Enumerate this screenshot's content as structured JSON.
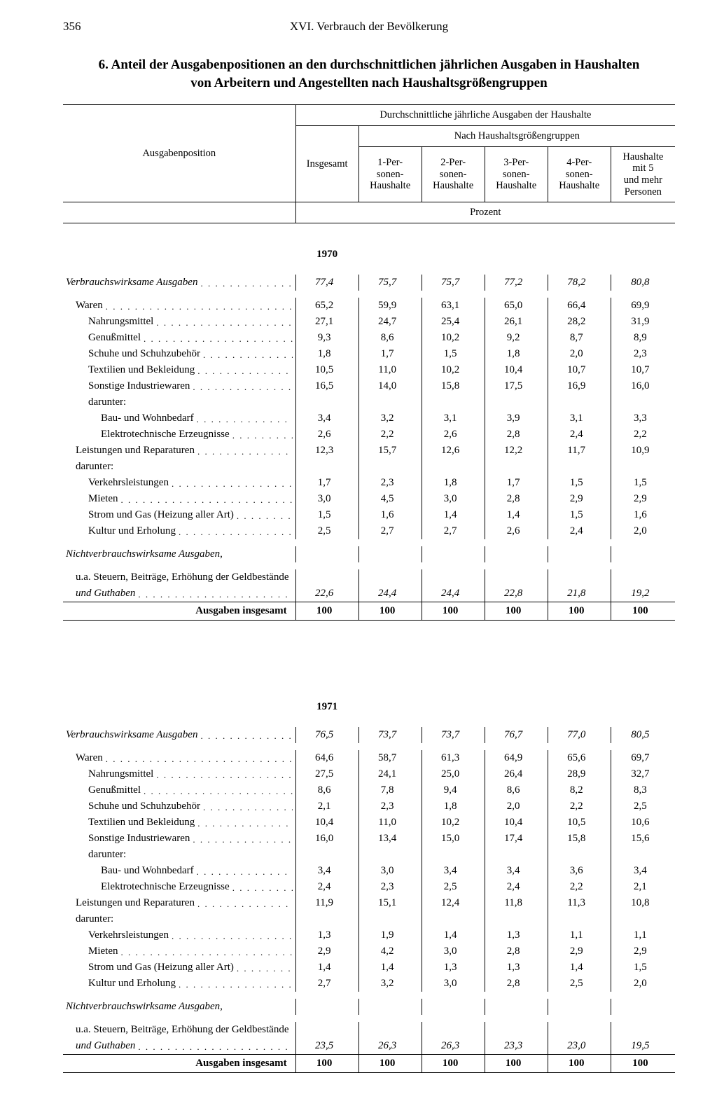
{
  "page_number": "356",
  "running_head": "XVI. Verbrauch der Bevölkerung",
  "title": "6. Anteil der Ausgabenpositionen an den durchschnittlichen jährlichen Ausgaben in Haushalten von Arbeitern und Angestellten nach Haushaltsgrößengruppen",
  "header": {
    "col_label": "Ausgabenposition",
    "super": "Durchschnittliche jährliche Ausgaben der Haushalte",
    "sub": "Nach Haushaltsgrößengruppen",
    "cols": [
      "Insgesamt",
      "1-Per-\nsonen-\nHaushalte",
      "2-Per-\nsonen-\nHaushalte",
      "3-Per-\nsonen-\nHaushalte",
      "4-Per-\nsonen-\nHaushalte",
      "Haushalte\nmit 5\nund mehr\nPersonen"
    ],
    "unit": "Prozent"
  },
  "sections": [
    {
      "year": "1970",
      "rows": [
        {
          "label": "Verbrauchswirksame Ausgaben",
          "indent": 0,
          "style": "ital",
          "dots": true,
          "vals": [
            "77,4",
            "75,7",
            "75,7",
            "77,2",
            "78,2",
            "80,8"
          ]
        },
        {
          "spacer": true
        },
        {
          "label": "Waren",
          "indent": 1,
          "dots": true,
          "vals": [
            "65,2",
            "59,9",
            "63,1",
            "65,0",
            "66,4",
            "69,9"
          ]
        },
        {
          "label": "Nahrungsmittel",
          "indent": 2,
          "dots": true,
          "vals": [
            "27,1",
            "24,7",
            "25,4",
            "26,1",
            "28,2",
            "31,9"
          ]
        },
        {
          "label": "Genußmittel",
          "indent": 2,
          "dots": true,
          "vals": [
            "9,3",
            "8,6",
            "10,2",
            "9,2",
            "8,7",
            "8,9"
          ]
        },
        {
          "label": "Schuhe und Schuhzubehör",
          "indent": 2,
          "dots": true,
          "vals": [
            "1,8",
            "1,7",
            "1,5",
            "1,8",
            "2,0",
            "2,3"
          ]
        },
        {
          "label": "Textilien und Bekleidung",
          "indent": 2,
          "dots": true,
          "vals": [
            "10,5",
            "11,0",
            "10,2",
            "10,4",
            "10,7",
            "10,7"
          ]
        },
        {
          "label": "Sonstige Industriewaren",
          "indent": 2,
          "dots": true,
          "vals": [
            "16,5",
            "14,0",
            "15,8",
            "17,5",
            "16,9",
            "16,0"
          ]
        },
        {
          "label": "darunter:",
          "indent": 2,
          "dots": false,
          "vals": [
            "",
            "",
            "",
            "",
            "",
            ""
          ]
        },
        {
          "label": "Bau- und Wohnbedarf",
          "indent": 3,
          "dots": true,
          "vals": [
            "3,4",
            "3,2",
            "3,1",
            "3,9",
            "3,1",
            "3,3"
          ]
        },
        {
          "label": "Elektrotechnische Erzeugnisse",
          "indent": 3,
          "dots": true,
          "vals": [
            "2,6",
            "2,2",
            "2,6",
            "2,8",
            "2,4",
            "2,2"
          ]
        },
        {
          "label": "Leistungen und Reparaturen",
          "indent": 1,
          "dots": true,
          "vals": [
            "12,3",
            "15,7",
            "12,6",
            "12,2",
            "11,7",
            "10,9"
          ]
        },
        {
          "label": "darunter:",
          "indent": 1,
          "dots": false,
          "vals": [
            "",
            "",
            "",
            "",
            "",
            ""
          ]
        },
        {
          "label": "Verkehrsleistungen",
          "indent": 2,
          "dots": true,
          "vals": [
            "1,7",
            "2,3",
            "1,8",
            "1,7",
            "1,5",
            "1,5"
          ]
        },
        {
          "label": "Mieten",
          "indent": 2,
          "dots": true,
          "vals": [
            "3,0",
            "4,5",
            "3,0",
            "2,8",
            "2,9",
            "2,9"
          ]
        },
        {
          "label": "Strom und Gas (Heizung aller Art)",
          "indent": 2,
          "dots": true,
          "vals": [
            "1,5",
            "1,6",
            "1,4",
            "1,4",
            "1,5",
            "1,6"
          ]
        },
        {
          "label": "Kultur und Erholung",
          "indent": 2,
          "dots": true,
          "vals": [
            "2,5",
            "2,7",
            "2,7",
            "2,6",
            "2,4",
            "2,0"
          ]
        },
        {
          "spacer": true
        },
        {
          "label": "Nichtverbrauchswirksame Ausgaben,",
          "indent": 0,
          "style": "ital",
          "dots": false,
          "vals": [
            "",
            "",
            "",
            "",
            "",
            ""
          ]
        },
        {
          "spacer": true
        },
        {
          "label": "u.a. Steuern, Beiträge, Erhöhung der Geldbestände",
          "indent": 1,
          "dots": false,
          "vals": [
            "",
            "",
            "",
            "",
            "",
            ""
          ]
        },
        {
          "label": "und Guthaben",
          "indent": 1,
          "style": "ital",
          "dots": true,
          "vals": [
            "22,6",
            "24,4",
            "24,4",
            "22,8",
            "21,8",
            "19,2"
          ]
        }
      ],
      "total": {
        "label": "Ausgaben insgesamt",
        "vals": [
          "100",
          "100",
          "100",
          "100",
          "100",
          "100"
        ]
      }
    },
    {
      "year": "1971",
      "rows": [
        {
          "label": "Verbrauchswirksame Ausgaben",
          "indent": 0,
          "style": "ital",
          "dots": true,
          "vals": [
            "76,5",
            "73,7",
            "73,7",
            "76,7",
            "77,0",
            "80,5"
          ]
        },
        {
          "spacer": true
        },
        {
          "label": "Waren",
          "indent": 1,
          "dots": true,
          "vals": [
            "64,6",
            "58,7",
            "61,3",
            "64,9",
            "65,6",
            "69,7"
          ]
        },
        {
          "label": "Nahrungsmittel",
          "indent": 2,
          "dots": true,
          "vals": [
            "27,5",
            "24,1",
            "25,0",
            "26,4",
            "28,9",
            "32,7"
          ]
        },
        {
          "label": "Genußmittel",
          "indent": 2,
          "dots": true,
          "vals": [
            "8,6",
            "7,8",
            "9,4",
            "8,6",
            "8,2",
            "8,3"
          ]
        },
        {
          "label": "Schuhe und Schuhzubehör",
          "indent": 2,
          "dots": true,
          "vals": [
            "2,1",
            "2,3",
            "1,8",
            "2,0",
            "2,2",
            "2,5"
          ]
        },
        {
          "label": "Textilien und Bekleidung",
          "indent": 2,
          "dots": true,
          "vals": [
            "10,4",
            "11,0",
            "10,2",
            "10,4",
            "10,5",
            "10,6"
          ]
        },
        {
          "label": "Sonstige Industriewaren",
          "indent": 2,
          "dots": true,
          "vals": [
            "16,0",
            "13,4",
            "15,0",
            "17,4",
            "15,8",
            "15,6"
          ]
        },
        {
          "label": "darunter:",
          "indent": 2,
          "dots": false,
          "vals": [
            "",
            "",
            "",
            "",
            "",
            ""
          ]
        },
        {
          "label": "Bau- und Wohnbedarf",
          "indent": 3,
          "dots": true,
          "vals": [
            "3,4",
            "3,0",
            "3,4",
            "3,4",
            "3,6",
            "3,4"
          ]
        },
        {
          "label": "Elektrotechnische Erzeugnisse",
          "indent": 3,
          "dots": true,
          "vals": [
            "2,4",
            "2,3",
            "2,5",
            "2,4",
            "2,2",
            "2,1"
          ]
        },
        {
          "label": "Leistungen und Reparaturen",
          "indent": 1,
          "dots": true,
          "vals": [
            "11,9",
            "15,1",
            "12,4",
            "11,8",
            "11,3",
            "10,8"
          ]
        },
        {
          "label": "darunter:",
          "indent": 1,
          "dots": false,
          "vals": [
            "",
            "",
            "",
            "",
            "",
            ""
          ]
        },
        {
          "label": "Verkehrsleistungen",
          "indent": 2,
          "dots": true,
          "vals": [
            "1,3",
            "1,9",
            "1,4",
            "1,3",
            "1,1",
            "1,1"
          ]
        },
        {
          "label": "Mieten",
          "indent": 2,
          "dots": true,
          "vals": [
            "2,9",
            "4,2",
            "3,0",
            "2,8",
            "2,9",
            "2,9"
          ]
        },
        {
          "label": "Strom und Gas (Heizung aller Art)",
          "indent": 2,
          "dots": true,
          "vals": [
            "1,4",
            "1,4",
            "1,3",
            "1,3",
            "1,4",
            "1,5"
          ]
        },
        {
          "label": "Kultur und Erholung",
          "indent": 2,
          "dots": true,
          "vals": [
            "2,7",
            "3,2",
            "3,0",
            "2,8",
            "2,5",
            "2,0"
          ]
        },
        {
          "spacer": true
        },
        {
          "label": "Nichtverbrauchswirksame Ausgaben,",
          "indent": 0,
          "style": "ital",
          "dots": false,
          "vals": [
            "",
            "",
            "",
            "",
            "",
            ""
          ]
        },
        {
          "spacer": true
        },
        {
          "label": "u.a. Steuern, Beiträge, Erhöhung der Geldbestände",
          "indent": 1,
          "dots": false,
          "vals": [
            "",
            "",
            "",
            "",
            "",
            ""
          ]
        },
        {
          "label": "und Guthaben",
          "indent": 1,
          "style": "ital",
          "dots": true,
          "vals": [
            "23,5",
            "26,3",
            "26,3",
            "23,3",
            "23,0",
            "19,5"
          ]
        }
      ],
      "total": {
        "label": "Ausgaben insgesamt",
        "vals": [
          "100",
          "100",
          "100",
          "100",
          "100",
          "100"
        ]
      }
    }
  ],
  "layout": {
    "col_widths": [
      "38%",
      "10.3%",
      "10.3%",
      "10.3%",
      "10.3%",
      "10.3%",
      "10.5%"
    ],
    "dot_fill": ". . . . . . . . . . . . . . . . . . . . . . . . . . . . . . . . . . . . . . . ."
  }
}
